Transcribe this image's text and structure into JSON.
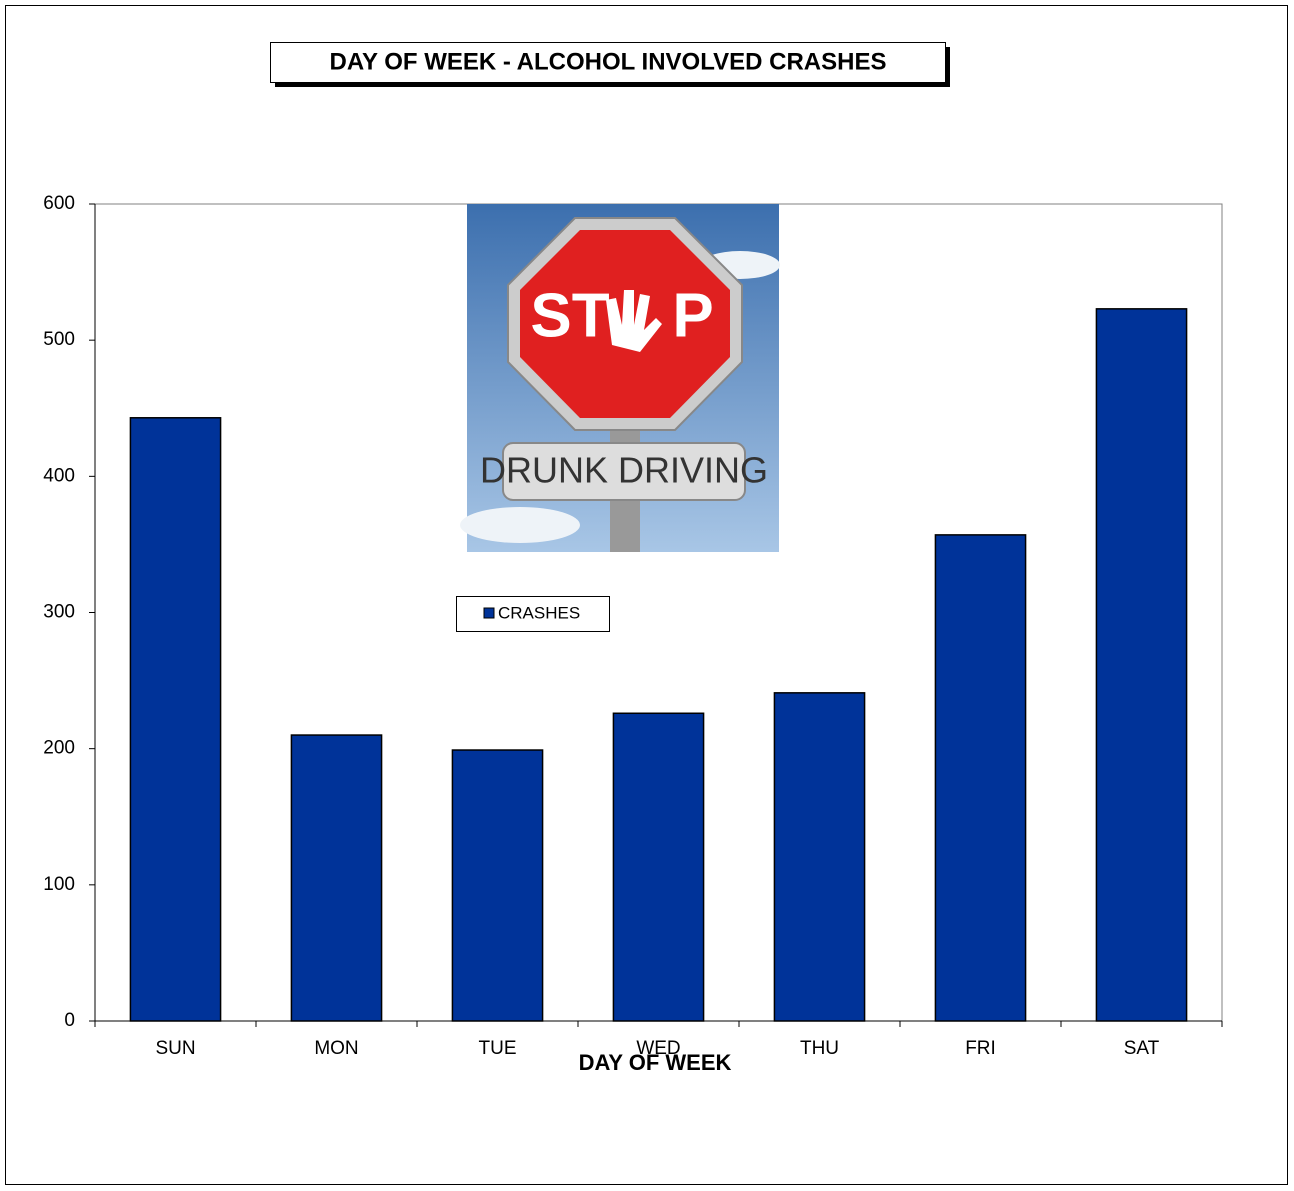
{
  "chart_data": {
    "type": "bar",
    "title": "DAY OF WEEK - ALCOHOL INVOLVED CRASHES",
    "x_label": "DAY OF WEEK",
    "categories": [
      "SUN",
      "MON",
      "TUE",
      "WED",
      "THU",
      "FRI",
      "SAT"
    ],
    "series": [
      {
        "name": "CRASHES",
        "color": "#003399",
        "values": [
          443,
          210,
          199,
          226,
          241,
          357,
          523
        ]
      }
    ],
    "ylim": [
      0,
      600
    ],
    "yticks": [
      0,
      100,
      200,
      300,
      400,
      500,
      600
    ],
    "grid": false
  },
  "image": {
    "sign_start": "ST",
    "sign_end": "P",
    "banner": "DRUNK DRIVING"
  }
}
